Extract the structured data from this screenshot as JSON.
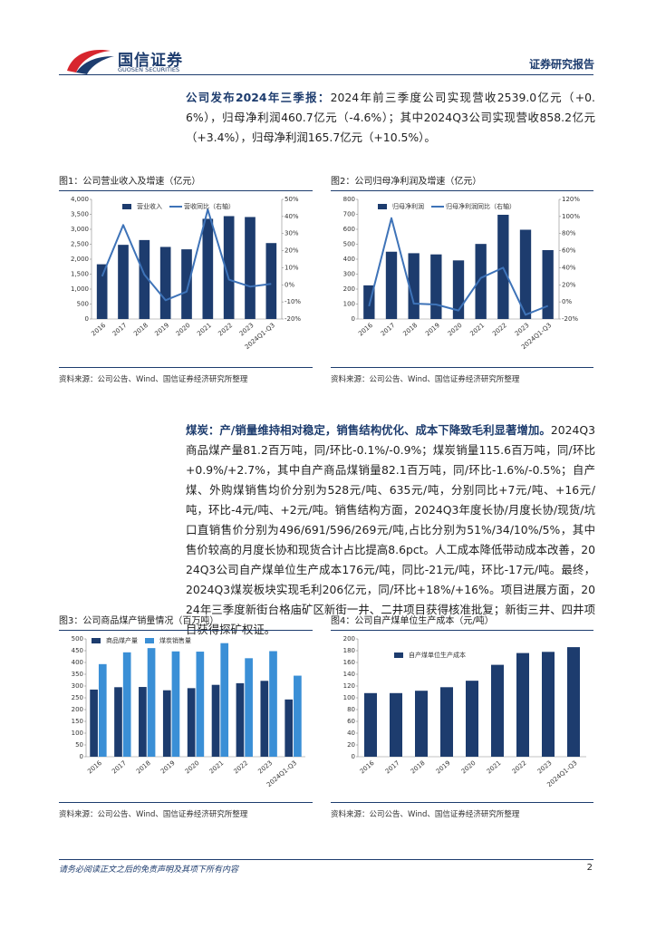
{
  "header": {
    "logo_cn": "国信证券",
    "logo_en": "GUOSEN SECURITIES",
    "doc_type": "证券研究报告"
  },
  "paragraphs": [
    {
      "lead": "公司发布2024年三季报：",
      "text": "2024年前三季度公司实现营收2539.0亿元（+0.6%），归母净利润460.7亿元（-4.6%）；其中2024Q3公司实现营收858.2亿元（+3.4%），归母净利润165.7亿元（+10.5%）。"
    },
    {
      "lead": "煤炭：产/销量维持相对稳定，销售结构优化、成本下降致毛利显著增加。",
      "text": "2024Q3商品煤产量81.2百万吨，同/环比-0.1%/-0.9%；煤炭销量115.6百万吨，同/环比+0.9%/+2.7%，其中自产商品煤销量82.1百万吨，同/环比-1.6%/-0.5%；自产煤、外购煤销售均价分别为528元/吨、635元/吨，分别同比+7元/吨、+16元/吨，环比-4元/吨、+2元/吨。销售结构方面，2024Q3年度长协/月度长协/现货/坑口直销售价分别为496/691/596/269元/吨,占比分别为51%/34/10%/5%，其中售价较高的月度长协和现货合计占比提高8.6pct。人工成本降低带动成本改善，2024Q3公司自产煤单位生产成本176元/吨，同比-21元/吨，环比-17元/吨。最终，2024Q3煤炭板块实现毛利206亿元，同/环比+18%/+16%。项目进展方面，2024年三季度新街台格庙矿区新街一井、二井项目获得核准批复；新街三井、四井项目获得探矿权证。"
    }
  ],
  "chart_data": [
    {
      "type": "bar",
      "title": "图1：公司营业收入及增速（亿元）",
      "source": "资料来源：公司公告、Wind、国信证券经济研究所整理",
      "categories": [
        "2016",
        "2017",
        "2018",
        "2019",
        "2020",
        "2021",
        "2022",
        "2023",
        "2024Q1-Q3"
      ],
      "series": [
        {
          "name": "营业收入",
          "color": "#1d3c6e",
          "values": [
            1830,
            2480,
            2640,
            2410,
            2330,
            3350,
            3440,
            3410,
            2539
          ]
        },
        {
          "name": "营收同比（右轴）",
          "color": "#3e73b8",
          "type": "line",
          "axis": "y2",
          "values": [
            5,
            35,
            6,
            -9,
            -4,
            44,
            3,
            -1,
            0.6
          ]
        }
      ],
      "ylim": [
        0,
        4000
      ],
      "yticks": [
        0,
        500,
        {
          "value": 1000,
          "label": "1,000"
        },
        {
          "value": 1500,
          "label": "1,500"
        },
        {
          "value": 2000,
          "label": "2,000"
        },
        {
          "value": 2500,
          "label": "2,500"
        },
        {
          "value": 3000,
          "label": "3,000"
        },
        {
          "value": 3500,
          "label": "3,500"
        },
        {
          "value": 4000,
          "label": "4,000"
        }
      ],
      "y2lim": [
        -20,
        50
      ],
      "y2ticks": [
        {
          "value": -20,
          "label": "-20%"
        },
        {
          "value": -10,
          "label": "-10%"
        },
        {
          "value": 0,
          "label": "0%"
        },
        {
          "value": 10,
          "label": "10%"
        },
        {
          "value": 20,
          "label": "20%"
        },
        {
          "value": 30,
          "label": "30%"
        },
        {
          "value": 40,
          "label": "40%"
        },
        {
          "value": 50,
          "label": "50%"
        }
      ]
    },
    {
      "type": "bar",
      "title": "图2：公司归母净利润及增速（亿元）",
      "source": "资料来源：公司公告、Wind、国信证券经济研究所整理",
      "categories": [
        "2016",
        "2017",
        "2018",
        "2019",
        "2020",
        "2021",
        "2022",
        "2023",
        "2024Q1-Q3"
      ],
      "series": [
        {
          "name": "归母净利润",
          "color": "#1d3c6e",
          "values": [
            225,
            450,
            440,
            432,
            392,
            502,
            697,
            597,
            460.7
          ]
        },
        {
          "name": "归母净利润同比（右轴）",
          "color": "#3e73b8",
          "type": "line",
          "axis": "y2",
          "values": [
            -5,
            98,
            -2,
            -3,
            -10,
            28,
            40,
            -15,
            -4.6
          ]
        }
      ],
      "ylim": [
        0,
        800
      ],
      "yticks": [
        0,
        100,
        200,
        300,
        400,
        500,
        600,
        700,
        800
      ],
      "y2lim": [
        -20,
        120
      ],
      "y2ticks": [
        {
          "value": -20,
          "label": "-20%"
        },
        {
          "value": 0,
          "label": "0%"
        },
        {
          "value": 20,
          "label": "20%"
        },
        {
          "value": 40,
          "label": "40%"
        },
        {
          "value": 60,
          "label": "60%"
        },
        {
          "value": 80,
          "label": "80%"
        },
        {
          "value": 100,
          "label": "100%"
        },
        {
          "value": 120,
          "label": "120%"
        }
      ]
    },
    {
      "type": "bar",
      "title": "图3：公司商品煤产销量情况（百万吨）",
      "source": "资料来源：公司公告、Wind、国信证券经济研究所整理",
      "categories": [
        "2016",
        "2017",
        "2018",
        "2019",
        "2020",
        "2021",
        "2022",
        "2023",
        "2024Q1-Q3"
      ],
      "series": [
        {
          "name": "商品煤产量",
          "color": "#1d3c6e",
          "values": [
            285,
            295,
            296,
            282,
            291,
            305,
            312,
            322,
            243
          ]
        },
        {
          "name": "煤炭销售量",
          "color": "#3a8fd6",
          "values": [
            393,
            443,
            461,
            447,
            446,
            482,
            418,
            448,
            344
          ]
        }
      ],
      "ylim": [
        0,
        500
      ],
      "yticks": [
        0,
        50,
        100,
        150,
        200,
        250,
        300,
        350,
        400,
        450,
        500
      ]
    },
    {
      "type": "bar",
      "title": "图4：公司自产煤单位生产成本（元/吨）",
      "source": "资料来源：公司公告、Wind、国信证券经济研究所整理",
      "categories": [
        "2016",
        "2017",
        "2018",
        "2019",
        "2020",
        "2021",
        "2022",
        "2023",
        "2024Q1-Q3"
      ],
      "series": [
        {
          "name": "自产煤单位生产成本",
          "color": "#1d3c6e",
          "values": [
            108,
            108,
            112,
            118,
            129,
            156,
            176,
            178,
            186
          ]
        }
      ],
      "ylim": [
        0,
        200
      ],
      "yticks": [
        0,
        20,
        40,
        60,
        80,
        100,
        120,
        140,
        160,
        180,
        200
      ]
    }
  ],
  "footer": {
    "disclaimer": "请务必阅读正文之后的免责声明及其项下所有内容",
    "page": "2"
  }
}
